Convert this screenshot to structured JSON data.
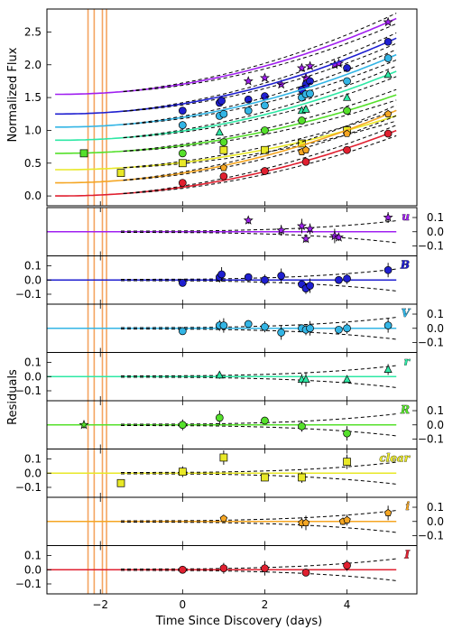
{
  "chart_data": {
    "type": "scatter",
    "xlabel": "Time Since Discovery (days)",
    "top_ylabel": "Normalized Flux",
    "resid_ylabel": "Residuals",
    "xlim": [
      -3.3,
      5.7
    ],
    "top_ylim": [
      -0.15,
      2.85
    ],
    "resid_ylim": [
      -0.17,
      0.17
    ],
    "x_ticks": [
      -2,
      0,
      2,
      4
    ],
    "x_tick_labels": [
      "−2",
      "0",
      "2",
      "4"
    ],
    "top_y_ticks": [
      0.0,
      0.5,
      1.0,
      1.5,
      2.0,
      2.5
    ],
    "top_y_tick_labels": [
      "0.0",
      "0.5",
      "1.0",
      "1.5",
      "2.0",
      "2.5"
    ],
    "resid_y_tick_labels": [
      "0.1",
      "0.0",
      "−0.1"
    ],
    "vertical_lines": [
      -2.3,
      -2.15,
      -1.95,
      -1.85
    ],
    "vertical_line_color": "#f4a460",
    "bands": [
      {
        "name": "u",
        "color": "#a020f0",
        "offset": 1.55,
        "marker": "star",
        "label_side": "right",
        "tick_side": "right",
        "points": [
          [
            1.6,
            1.75
          ],
          [
            2.0,
            1.8
          ],
          [
            2.4,
            1.7
          ],
          [
            2.9,
            1.95
          ],
          [
            3.0,
            1.8
          ],
          [
            3.1,
            1.98
          ],
          [
            3.7,
            2.0
          ],
          [
            3.8,
            2.02
          ],
          [
            5.0,
            2.65
          ]
        ],
        "residuals": [
          [
            1.6,
            0.08
          ],
          [
            2.4,
            0.01
          ],
          [
            2.9,
            0.04
          ],
          [
            3.0,
            -0.05
          ],
          [
            3.1,
            0.02
          ],
          [
            3.7,
            -0.03
          ],
          [
            3.8,
            -0.04
          ],
          [
            5.0,
            0.1
          ]
        ]
      },
      {
        "name": "B",
        "color": "#1f1fd0",
        "offset": 1.25,
        "marker": "circle",
        "label_side": "right",
        "tick_side": "left",
        "points": [
          [
            0.0,
            1.3
          ],
          [
            0.9,
            1.42
          ],
          [
            0.95,
            1.45
          ],
          [
            1.6,
            1.47
          ],
          [
            2.0,
            1.52
          ],
          [
            2.9,
            1.62
          ],
          [
            3.0,
            1.7
          ],
          [
            3.1,
            1.75
          ],
          [
            4.0,
            1.95
          ],
          [
            5.0,
            2.35
          ]
        ],
        "residuals": [
          [
            0.0,
            -0.02
          ],
          [
            0.9,
            0.02
          ],
          [
            0.95,
            0.04
          ],
          [
            1.6,
            0.02
          ],
          [
            2.0,
            0.0
          ],
          [
            2.4,
            0.03
          ],
          [
            2.9,
            -0.03
          ],
          [
            3.0,
            -0.06
          ],
          [
            3.1,
            -0.04
          ],
          [
            3.8,
            0.0
          ],
          [
            4.0,
            0.01
          ],
          [
            5.0,
            0.07
          ]
        ]
      },
      {
        "name": "V",
        "color": "#33b5e5",
        "offset": 1.05,
        "marker": "circle",
        "label_side": "right",
        "tick_side": "right",
        "points": [
          [
            0.0,
            1.08
          ],
          [
            0.9,
            1.22
          ],
          [
            1.0,
            1.25
          ],
          [
            1.6,
            1.3
          ],
          [
            2.0,
            1.38
          ],
          [
            2.9,
            1.5
          ],
          [
            3.0,
            1.55
          ],
          [
            3.1,
            1.56
          ],
          [
            4.0,
            1.75
          ],
          [
            5.0,
            2.1
          ]
        ],
        "residuals": [
          [
            0.0,
            -0.02
          ],
          [
            0.9,
            0.02
          ],
          [
            1.0,
            0.02
          ],
          [
            1.6,
            0.03
          ],
          [
            2.0,
            0.01
          ],
          [
            2.4,
            -0.03
          ],
          [
            2.9,
            0.0
          ],
          [
            3.0,
            -0.01
          ],
          [
            3.1,
            0.0
          ],
          [
            3.8,
            -0.01
          ],
          [
            4.0,
            0.0
          ],
          [
            5.0,
            0.02
          ]
        ]
      },
      {
        "name": "r",
        "color": "#2ee8a5",
        "offset": 0.85,
        "marker": "triangle",
        "label_side": "right",
        "tick_side": "left",
        "points": [
          [
            0.9,
            0.97
          ],
          [
            2.9,
            1.3
          ],
          [
            3.0,
            1.32
          ],
          [
            4.0,
            1.5
          ],
          [
            5.0,
            1.85
          ]
        ],
        "residuals": [
          [
            0.9,
            0.01
          ],
          [
            2.9,
            -0.02
          ],
          [
            3.0,
            -0.02
          ],
          [
            4.0,
            -0.02
          ],
          [
            5.0,
            0.05
          ]
        ]
      },
      {
        "name": "R",
        "color": "#55e02b",
        "offset": 0.65,
        "marker": "circle",
        "label_side": "right",
        "tick_side": "right",
        "points": [
          [
            -2.4,
            0.65
          ],
          [
            0.0,
            0.65
          ],
          [
            1.0,
            0.82
          ],
          [
            2.0,
            1.0
          ],
          [
            2.9,
            1.15
          ],
          [
            4.0,
            1.3
          ]
        ],
        "residuals": [
          [
            -2.4,
            0.0
          ],
          [
            0.0,
            0.0
          ],
          [
            0.9,
            0.05
          ],
          [
            2.0,
            0.03
          ],
          [
            2.9,
            -0.01
          ],
          [
            4.0,
            -0.06
          ]
        ]
      },
      {
        "name": "clear",
        "color": "#e8e827",
        "offset": 0.4,
        "marker": "square",
        "label_side": "right",
        "tick_side": "left",
        "points": [
          [
            -1.5,
            0.35
          ],
          [
            0.0,
            0.5
          ],
          [
            1.0,
            0.7
          ],
          [
            2.0,
            0.7
          ],
          [
            2.9,
            0.8
          ],
          [
            4.0,
            1.0
          ]
        ],
        "residuals": [
          [
            -1.5,
            -0.07
          ],
          [
            0.0,
            0.01
          ],
          [
            1.0,
            0.11
          ],
          [
            2.0,
            -0.03
          ],
          [
            2.9,
            -0.03
          ],
          [
            4.0,
            0.08
          ]
        ]
      },
      {
        "name": "i",
        "color": "#f5a623",
        "offset": 0.2,
        "marker": "pentagon",
        "label_side": "right",
        "tick_side": "right",
        "points": [
          [
            1.0,
            0.43
          ],
          [
            2.9,
            0.67
          ],
          [
            3.0,
            0.7
          ],
          [
            4.0,
            0.95
          ],
          [
            5.0,
            1.25
          ]
        ],
        "residuals": [
          [
            1.0,
            0.02
          ],
          [
            2.9,
            -0.01
          ],
          [
            3.0,
            -0.01
          ],
          [
            3.9,
            0.0
          ],
          [
            4.0,
            0.01
          ],
          [
            5.0,
            0.06
          ]
        ]
      },
      {
        "name": "I",
        "color": "#e02030",
        "offset": 0.0,
        "marker": "circle",
        "label_side": "right",
        "tick_side": "left",
        "points": [
          [
            0.0,
            0.2
          ],
          [
            1.0,
            0.3
          ],
          [
            2.0,
            0.38
          ],
          [
            3.0,
            0.52
          ],
          [
            4.0,
            0.7
          ],
          [
            5.0,
            0.95
          ]
        ],
        "residuals": [
          [
            0.0,
            0.0
          ],
          [
            1.0,
            0.01
          ],
          [
            2.0,
            0.01
          ],
          [
            3.0,
            -0.02
          ],
          [
            4.0,
            0.03
          ]
        ]
      }
    ]
  }
}
